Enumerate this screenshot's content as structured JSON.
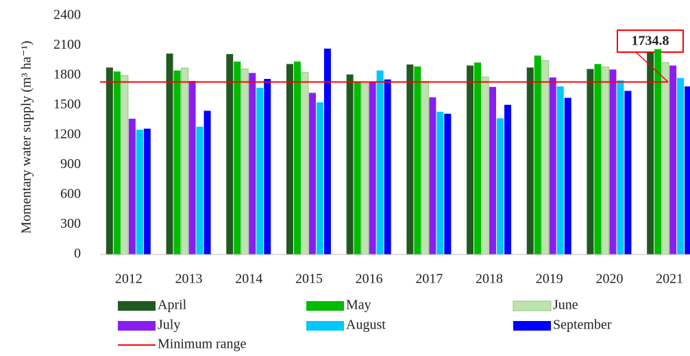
{
  "chart_data": {
    "type": "bar",
    "y_label": "Momentary water supply (m³ ha⁻¹)",
    "categories": [
      "2012",
      "2013",
      "2014",
      "2015",
      "2016",
      "2017",
      "2018",
      "2019",
      "2020",
      "2021"
    ],
    "series": [
      {
        "name": "April",
        "color": "#215a20",
        "values": [
          1880,
          2020,
          2015,
          1915,
          1810,
          1910,
          1900,
          1880,
          1865,
          2030
        ]
      },
      {
        "name": "May",
        "color": "#00bb00",
        "values": [
          1840,
          1850,
          1940,
          1940,
          1735,
          1890,
          1930,
          2000,
          1915,
          2065
        ]
      },
      {
        "name": "June",
        "color": "#bfe3b0",
        "values": [
          1800,
          1875,
          1865,
          1830,
          1720,
          1740,
          1785,
          1950,
          1885,
          1930
        ]
      },
      {
        "name": "July",
        "color": "#8a1ef0",
        "values": [
          1365,
          1745,
          1825,
          1625,
          1735,
          1580,
          1685,
          1780,
          1860,
          1900
        ]
      },
      {
        "name": "August",
        "color": "#00c8ff",
        "values": [
          1255,
          1285,
          1675,
          1530,
          1850,
          1435,
          1370,
          1690,
          1750,
          1775
        ]
      },
      {
        "name": "September",
        "color": "#0000ff",
        "values": [
          1265,
          1445,
          1765,
          2070,
          1760,
          1415,
          1505,
          1575,
          1645,
          1690
        ]
      }
    ],
    "min_range": {
      "name": "Minimum range",
      "value": 1734.8,
      "color": "#ff0000"
    },
    "ylim": [
      0,
      2400
    ],
    "yticks": [
      0,
      300,
      600,
      900,
      1200,
      1500,
      1800,
      2100,
      2400
    ],
    "grid": false
  }
}
